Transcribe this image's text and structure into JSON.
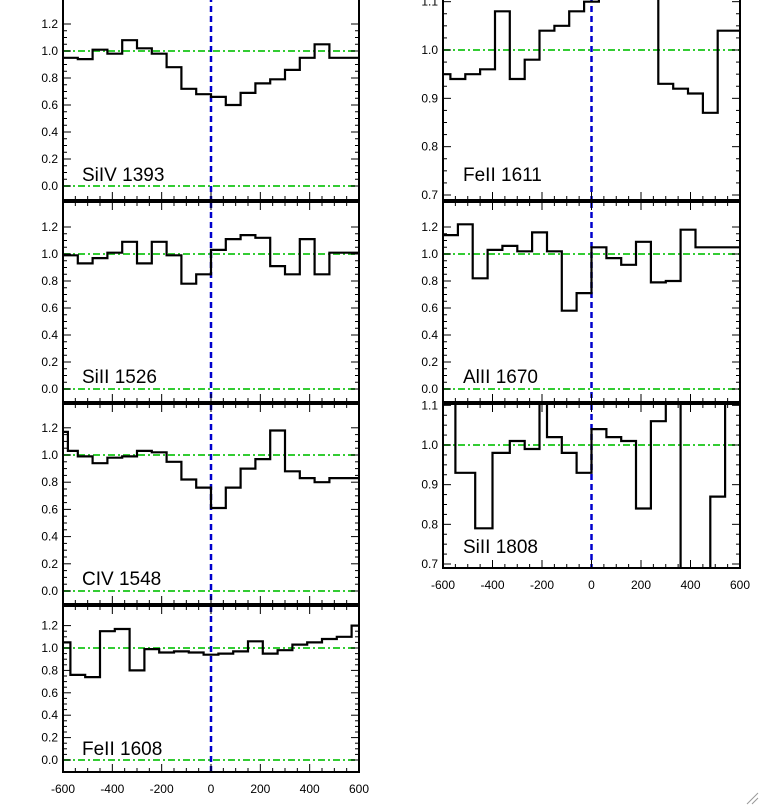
{
  "figure": {
    "x_tick_labels": [
      "-600",
      "-400",
      "-200",
      "0",
      "200",
      "400",
      "600"
    ],
    "colors": {
      "spectrum": "#000000",
      "zero_velocity_line": "#0000cc",
      "reference_lines": "#33cc33",
      "frame": "#000000"
    }
  },
  "chart_data": [
    {
      "type": "line",
      "label": "SiIV 1393",
      "xlim": [
        -600,
        600
      ],
      "ylim": [
        -0.1,
        1.35
      ],
      "yticks": [
        0.0,
        0.2,
        0.4,
        0.6,
        0.8,
        1.0,
        1.2
      ],
      "ytick_labels": [
        "0.0",
        "0.2",
        "0.4",
        "0.6",
        "0.8",
        "1.0",
        "1.2"
      ],
      "hlines": [
        0.0,
        1.0
      ],
      "vline": 0,
      "x_ticks_labeled": false,
      "y_top_tick_clipped": true,
      "x": [
        -600,
        -540,
        -480,
        -420,
        -360,
        -300,
        -240,
        -180,
        -120,
        -60,
        0,
        60,
        120,
        180,
        240,
        300,
        360,
        420,
        480,
        540
      ],
      "values": [
        0.95,
        0.94,
        1.01,
        0.98,
        1.08,
        1.02,
        0.98,
        0.88,
        0.72,
        0.68,
        0.66,
        0.6,
        0.69,
        0.76,
        0.79,
        0.86,
        0.95,
        1.05,
        0.95,
        0.95
      ]
    },
    {
      "type": "line",
      "label": "FeII 1611",
      "xlim": [
        -600,
        600
      ],
      "ylim": [
        0.7,
        1.13
      ],
      "yticks": [
        0.7,
        0.8,
        0.9,
        1.0,
        1.1
      ],
      "ytick_labels": [
        "0.7",
        "0.8",
        "0.9",
        "1.0",
        "1.1"
      ],
      "hlines": [
        1.0
      ],
      "vline": 0,
      "x_ticks_labeled": false,
      "y_top_tick_clipped": true,
      "x": [
        -600,
        -570,
        -510,
        -450,
        -390,
        -330,
        -270,
        -210,
        -150,
        -90,
        -30,
        30,
        90,
        150,
        210,
        270,
        330,
        390,
        450,
        510
      ],
      "values": [
        0.95,
        0.94,
        0.95,
        0.96,
        1.08,
        0.94,
        0.98,
        1.04,
        1.05,
        1.08,
        1.1,
        1.15,
        1.15,
        1.15,
        1.15,
        0.93,
        0.92,
        0.91,
        0.87,
        1.04
      ]
    },
    {
      "type": "line",
      "label": "SiII 1526",
      "xlim": [
        -600,
        600
      ],
      "ylim": [
        -0.1,
        1.35
      ],
      "yticks": [
        0.0,
        0.2,
        0.4,
        0.6,
        0.8,
        1.0,
        1.2
      ],
      "ytick_labels": [
        "0.0",
        "0.2",
        "0.4",
        "0.6",
        "0.8",
        "1.0",
        "1.2"
      ],
      "hlines": [
        0.0,
        1.0
      ],
      "vline": 0,
      "x_ticks_labeled": false,
      "x": [
        -600,
        -540,
        -480,
        -420,
        -360,
        -300,
        -240,
        -180,
        -120,
        -60,
        0,
        60,
        120,
        180,
        240,
        300,
        360,
        420,
        480,
        540
      ],
      "values": [
        0.99,
        0.93,
        0.97,
        1.01,
        1.09,
        0.93,
        1.09,
        0.99,
        0.78,
        0.85,
        1.03,
        1.11,
        1.14,
        1.12,
        0.91,
        0.85,
        1.11,
        0.85,
        1.01,
        1.01
      ]
    },
    {
      "type": "line",
      "label": "AlII 1670",
      "xlim": [
        -600,
        600
      ],
      "ylim": [
        -0.1,
        1.35
      ],
      "yticks": [
        0.0,
        0.2,
        0.4,
        0.6,
        0.8,
        1.0,
        1.2
      ],
      "ytick_labels": [
        "0.0",
        "0.2",
        "0.4",
        "0.6",
        "0.8",
        "1.0",
        "1.2"
      ],
      "hlines": [
        0.0,
        1.0
      ],
      "vline": 0,
      "x_ticks_labeled": false,
      "x": [
        -600,
        -540,
        -480,
        -420,
        -360,
        -300,
        -240,
        -180,
        -120,
        -60,
        0,
        60,
        120,
        180,
        240,
        300,
        360,
        420,
        480,
        540
      ],
      "values": [
        1.14,
        1.22,
        0.82,
        1.03,
        1.06,
        1.02,
        1.16,
        1.02,
        0.58,
        0.71,
        1.05,
        0.97,
        0.92,
        1.09,
        0.79,
        0.8,
        1.18,
        1.05,
        1.05,
        1.05
      ]
    },
    {
      "type": "line",
      "label": "CIV 1548",
      "xlim": [
        -600,
        600
      ],
      "ylim": [
        -0.1,
        1.35
      ],
      "yticks": [
        0.0,
        0.2,
        0.4,
        0.6,
        0.8,
        1.0,
        1.2
      ],
      "ytick_labels": [
        "0.0",
        "0.2",
        "0.4",
        "0.6",
        "0.8",
        "1.0",
        "1.2"
      ],
      "hlines": [
        0.0,
        1.0
      ],
      "vline": 0,
      "x_ticks_labeled": false,
      "x": [
        -600,
        -580,
        -540,
        -480,
        -420,
        -360,
        -300,
        -240,
        -180,
        -120,
        -60,
        0,
        60,
        120,
        180,
        240,
        300,
        360,
        420,
        480,
        540
      ],
      "values": [
        1.17,
        1.03,
        0.99,
        0.94,
        0.98,
        0.99,
        1.03,
        1.02,
        0.95,
        0.82,
        0.76,
        0.61,
        0.76,
        0.9,
        0.97,
        1.18,
        0.88,
        0.83,
        0.8,
        0.83,
        0.83
      ]
    },
    {
      "type": "line",
      "label": "SiII 1808",
      "xlim": [
        -600,
        600
      ],
      "ylim": [
        0.7,
        1.13
      ],
      "yticks": [
        0.7,
        0.8,
        0.9,
        1.0,
        1.1
      ],
      "ytick_labels": [
        "0.7",
        "0.8",
        "0.9",
        "1.0",
        "1.1"
      ],
      "hlines": [
        1.0
      ],
      "vline": 0,
      "x_ticks_labeled": true,
      "x": [
        -600,
        -550,
        -470,
        -400,
        -330,
        -270,
        -210,
        -180,
        -120,
        -60,
        0,
        60,
        120,
        180,
        240,
        300,
        360,
        420,
        480,
        540
      ],
      "values": [
        1.15,
        0.93,
        0.79,
        0.98,
        1.01,
        0.99,
        1.15,
        1.02,
        0.98,
        0.93,
        1.04,
        1.02,
        1.01,
        0.84,
        1.06,
        1.15,
        0.65,
        0.65,
        0.87,
        1.15
      ]
    },
    {
      "type": "line",
      "label": "FeII 1608",
      "xlim": [
        -600,
        600
      ],
      "ylim": [
        -0.1,
        1.35
      ],
      "yticks": [
        0.0,
        0.2,
        0.4,
        0.6,
        0.8,
        1.0,
        1.2
      ],
      "ytick_labels": [
        "0.0",
        "0.2",
        "0.4",
        "0.6",
        "0.8",
        "1.0",
        "1.2"
      ],
      "hlines": [
        0.0,
        1.0
      ],
      "vline": 0,
      "x_ticks_labeled": true,
      "x": [
        -600,
        -570,
        -510,
        -450,
        -390,
        -330,
        -270,
        -210,
        -150,
        -90,
        -30,
        30,
        90,
        150,
        210,
        270,
        330,
        390,
        450,
        510,
        570
      ],
      "values": [
        1.05,
        0.76,
        0.74,
        1.15,
        1.17,
        0.8,
        0.99,
        0.96,
        0.97,
        0.96,
        0.94,
        0.95,
        0.97,
        1.06,
        0.95,
        0.98,
        1.03,
        1.05,
        1.08,
        1.1,
        1.2
      ]
    }
  ]
}
